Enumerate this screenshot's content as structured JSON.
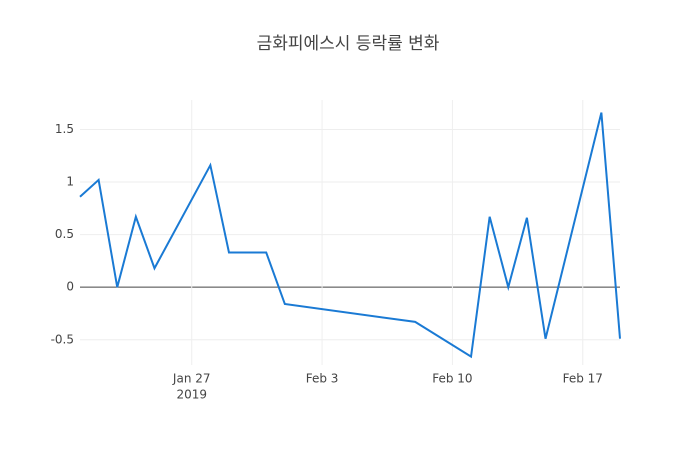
{
  "chart_data": {
    "type": "line",
    "title": "금화피에스시 등락률 변화",
    "x": [
      "2019-01-21",
      "2019-01-22",
      "2019-01-23",
      "2019-01-24",
      "2019-01-25",
      "2019-01-28",
      "2019-01-29",
      "2019-01-31",
      "2019-02-01",
      "2019-02-08",
      "2019-02-11",
      "2019-02-12",
      "2019-02-13",
      "2019-02-14",
      "2019-02-15",
      "2019-02-18",
      "2019-02-19"
    ],
    "series": [
      {
        "color": "#1a7ad4",
        "values": [
          0.86,
          1.02,
          0,
          0.67,
          0.18,
          1.16,
          0.33,
          0.33,
          -0.16,
          -0.33,
          -0.66,
          0.67,
          0,
          0.66,
          -0.49,
          1.66,
          -0.49
        ]
      }
    ],
    "xlim": [
      "2019-01-21",
      "2019-02-19"
    ],
    "xticks": [
      {
        "value": "2019-01-27",
        "label": "Jan 27"
      },
      {
        "value": "2019-02-03",
        "label": "Feb 3"
      },
      {
        "value": "2019-02-10",
        "label": "Feb 10"
      },
      {
        "value": "2019-02-17",
        "label": "Feb 17"
      }
    ],
    "x_year": "2019",
    "ylim": [
      -0.74,
      1.78
    ],
    "yticks": [
      -0.5,
      0,
      0.5,
      1,
      1.5
    ],
    "grid": true
  }
}
